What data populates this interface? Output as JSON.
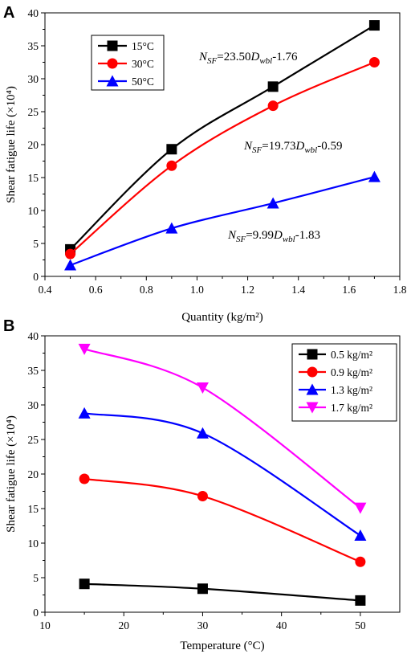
{
  "panels": [
    {
      "letter": "A",
      "chart_data": {
        "type": "line",
        "xlabel": "Quantity (kg/m²)",
        "ylabel": "Shear fatigue life (×10⁴)",
        "xlim": [
          0.4,
          1.8
        ],
        "ylim": [
          0,
          40
        ],
        "xticks": [
          0.4,
          0.6,
          0.8,
          1.0,
          1.2,
          1.4,
          1.6,
          1.8
        ],
        "yticks": [
          0,
          5,
          10,
          15,
          20,
          25,
          30,
          35,
          40
        ],
        "xtick_labels": [
          "0.4",
          "0.6",
          "0.8",
          "1.0",
          "1.2",
          "1.4",
          "1.6",
          "1.8"
        ],
        "ytick_labels": [
          "0",
          "5",
          "10",
          "15",
          "20",
          "25",
          "30",
          "35",
          "40"
        ],
        "legend_position": "top-left",
        "x": [
          0.5,
          0.9,
          1.3,
          1.7
        ],
        "series": [
          {
            "name": "15°C",
            "values": [
              4.1,
              19.3,
              28.8,
              38.1
            ],
            "color": "#000000",
            "marker": "square"
          },
          {
            "name": "30°C",
            "values": [
              3.4,
              16.8,
              25.9,
              32.5
            ],
            "color": "#ff0000",
            "marker": "circle"
          },
          {
            "name": "50°C",
            "values": [
              1.7,
              7.3,
              11.1,
              15.1
            ],
            "color": "#0000ff",
            "marker": "triangle-up"
          }
        ],
        "annotations": [
          {
            "prefix": "N",
            "sub1": "SF",
            "mid": "=23.50",
            "var": "D",
            "sub2": "wbl",
            "suffix": "-1.76"
          },
          {
            "prefix": "N",
            "sub1": "SF",
            "mid": "=19.73",
            "var": "D",
            "sub2": "wbl",
            "suffix": "-0.59"
          },
          {
            "prefix": "N",
            "sub1": "SF",
            "mid": "=9.99",
            "var": "D",
            "sub2": "wbl",
            "suffix": "-1.83"
          }
        ]
      }
    },
    {
      "letter": "B",
      "chart_data": {
        "type": "line",
        "xlabel": "Temperature (°C)",
        "ylabel": "Shear fatigue life (×10⁴)",
        "xlim": [
          10,
          55
        ],
        "ylim": [
          0,
          40
        ],
        "xticks": [
          10,
          20,
          30,
          40,
          50
        ],
        "yticks": [
          0,
          5,
          10,
          15,
          20,
          25,
          30,
          35,
          40
        ],
        "xtick_labels": [
          "10",
          "20",
          "30",
          "40",
          "50"
        ],
        "ytick_labels": [
          "0",
          "5",
          "10",
          "15",
          "20",
          "25",
          "30",
          "35",
          "40"
        ],
        "legend_position": "top-right",
        "x": [
          15,
          30,
          50
        ],
        "series": [
          {
            "name": "0.5 kg/m²",
            "values": [
              4.1,
              3.4,
              1.7
            ],
            "color": "#000000",
            "marker": "square"
          },
          {
            "name": "0.9 kg/m²",
            "values": [
              19.3,
              16.8,
              7.3
            ],
            "color": "#ff0000",
            "marker": "circle"
          },
          {
            "name": "1.3 kg/m²",
            "values": [
              28.8,
              25.9,
              11.1
            ],
            "color": "#0000ff",
            "marker": "triangle-up"
          },
          {
            "name": "1.7 kg/m²",
            "values": [
              38.1,
              32.5,
              15.1
            ],
            "color": "#ff00ff",
            "marker": "triangle-down"
          }
        ]
      }
    }
  ]
}
